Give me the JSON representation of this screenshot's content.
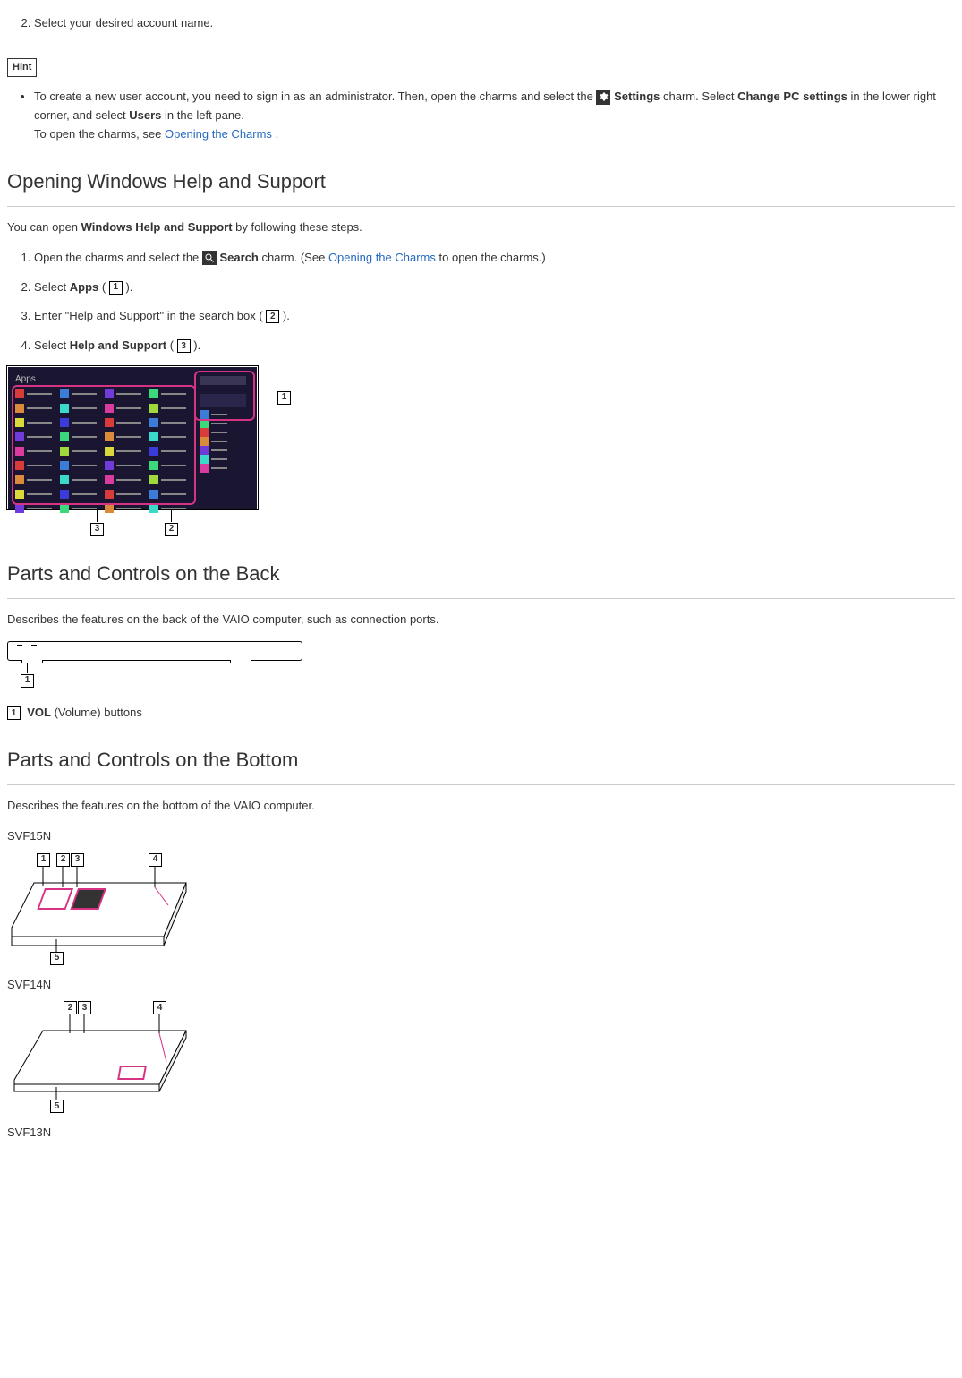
{
  "intro_step": {
    "number": "2.",
    "text": "Select your desired account name."
  },
  "hint": {
    "label": "Hint",
    "text_prefix": "To create a new user account, you need to sign in as an administrator. Then, open the charms and select the ",
    "settings_word": "Settings",
    "text_mid1": " charm. Select ",
    "change_pc": "Change PC settings",
    "text_mid2": " in the lower right corner, and select ",
    "users_word": "Users",
    "text_mid3": " in the left pane.",
    "line2_prefix": "To open the charms, see ",
    "link1": "Opening the Charms",
    "line2_suffix": "."
  },
  "section_help": {
    "heading": "Opening Windows Help and Support",
    "intro_a": "You can open ",
    "intro_b": "Windows Help and Support",
    "intro_c": " by following these steps.",
    "steps": [
      {
        "pre": "Open the charms and select the ",
        "bold": "Search",
        "post": " charm. (See ",
        "link": "Opening the Charms",
        "tail": " to open the charms.)",
        "has_icon": true,
        "has_numbox": false
      },
      {
        "pre": "Select ",
        "bold": "Apps",
        "post": " ( ",
        "num": "1",
        "tail": " ).",
        "has_icon": false,
        "has_numbox": true
      },
      {
        "pre": "Enter \"Help and Support\" in the search box ( ",
        "bold": "",
        "post": "",
        "num": "2",
        "tail": " ).",
        "has_icon": false,
        "has_numbox": true,
        "no_bold": true
      },
      {
        "pre": "Select ",
        "bold": "Help and Support",
        "post": " ( ",
        "num": "3",
        "tail": " ).",
        "has_icon": false,
        "has_numbox": true
      }
    ],
    "apps_title": "Apps",
    "callouts": {
      "c1": "1",
      "c2": "2",
      "c3": "3"
    },
    "chip_colors": [
      "#d93b3b",
      "#3b7cd9",
      "#6f3bd9",
      "#3bd97c",
      "#d98a3b",
      "#3bd9c9",
      "#d93b9e",
      "#a0d93b",
      "#d9d93b",
      "#3b3bd9"
    ]
  },
  "section_back": {
    "heading": "Parts and Controls on the Back",
    "intro": "Describes the features on the back of the VAIO computer, such as connection ports.",
    "callout_num": "1",
    "legend_num": "1",
    "legend_bold": "VOL",
    "legend_rest": " (Volume) buttons"
  },
  "section_bottom": {
    "heading": "Parts and Controls on the Bottom",
    "intro": "Describes the features on the bottom of the VAIO computer.",
    "models": [
      "SVF15N",
      "SVF14N",
      "SVF13N"
    ],
    "callouts": {
      "c1": "1",
      "c2": "2",
      "c3": "3",
      "c4": "4",
      "c5": "5"
    },
    "pink": "#d63384"
  }
}
